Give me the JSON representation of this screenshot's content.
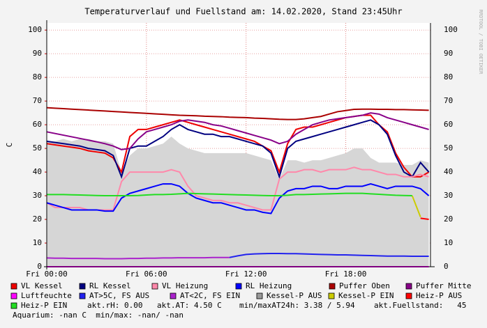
{
  "chart_data": {
    "type": "line",
    "title": "Temperaturverlauf und Fuellstand am: 14.02.2020, Stand 23:45Uhr",
    "y_label": "C",
    "side_text": "RRDTOOL / TOBI OETIKER",
    "x": [
      0,
      0.5,
      1,
      1.5,
      2,
      2.5,
      3,
      3.5,
      4,
      4.5,
      5,
      5.5,
      6,
      6.5,
      7,
      7.5,
      8,
      8.5,
      9,
      9.5,
      10,
      10.5,
      11,
      11.5,
      12,
      12.5,
      13,
      13.5,
      14,
      14.5,
      15,
      15.5,
      16,
      16.5,
      17,
      17.5,
      18,
      18.5,
      19,
      19.5,
      20,
      20.5,
      21,
      21.5,
      22,
      22.5,
      23
    ],
    "xlim": [
      0,
      23.1
    ],
    "xticks": [
      {
        "value": 0,
        "label": "Fri 00:00"
      },
      {
        "value": 6,
        "label": "Fri 06:00"
      },
      {
        "value": 12,
        "label": "Fri 12:00"
      },
      {
        "value": 18,
        "label": "Fri 18:00"
      }
    ],
    "ylim": [
      0,
      103
    ],
    "yticks": [
      0,
      10,
      20,
      30,
      40,
      50,
      60,
      70,
      80,
      90,
      100
    ],
    "grid": true,
    "series": [
      {
        "name": "Kessel-P AUS",
        "color": "#999999",
        "style": "area",
        "values": [
          53,
          53,
          54,
          53,
          54,
          54,
          53,
          53,
          52,
          40,
          47,
          50,
          50,
          51,
          52,
          55,
          52,
          50,
          49,
          48,
          48,
          48,
          48,
          48,
          48,
          47,
          46,
          45,
          37,
          45,
          45,
          44,
          45,
          45,
          46,
          47,
          48,
          50,
          50,
          46,
          44,
          44,
          44,
          43,
          43,
          45,
          44
        ]
      },
      {
        "name": "VL Kessel",
        "color": "#ee0000",
        "values": [
          52,
          51.5,
          51,
          50.5,
          50,
          49,
          48.5,
          48,
          46,
          40,
          55,
          58,
          58,
          59,
          60,
          61,
          62,
          61,
          60,
          59,
          58,
          57,
          56,
          55,
          54,
          53,
          51,
          49,
          40,
          52,
          58,
          59,
          59,
          60,
          61,
          62,
          63,
          63.5,
          64,
          64,
          60,
          57,
          48,
          42,
          38,
          38,
          40
        ]
      },
      {
        "name": "RL Kessel",
        "color": "#000080",
        "values": [
          53,
          52.5,
          52,
          51.5,
          51,
          50,
          49.5,
          49,
          47,
          38,
          50,
          51,
          51,
          53,
          55,
          58,
          60,
          58,
          57,
          56,
          56,
          55,
          55,
          54,
          53,
          52,
          51,
          48,
          38,
          50,
          53,
          54,
          55,
          56,
          57,
          58,
          59,
          60,
          61,
          62,
          60,
          56,
          47,
          40,
          38,
          44,
          40
        ]
      },
      {
        "name": "VL Heizung",
        "color": "#ff88aa",
        "values": [
          27,
          25,
          25,
          25,
          25,
          24,
          24,
          24,
          24,
          36,
          40,
          40,
          40,
          40,
          40,
          41,
          40,
          34,
          30,
          29,
          28,
          28,
          27,
          27,
          26,
          25,
          24,
          24,
          37,
          40,
          40,
          41,
          41,
          40,
          41,
          41,
          41,
          42,
          41,
          41,
          40,
          39,
          39,
          38,
          38,
          39,
          38
        ]
      },
      {
        "name": "RL Heizung",
        "color": "#0000ff",
        "values": [
          27,
          26,
          25,
          24,
          24,
          24,
          24,
          23.5,
          23.5,
          29,
          31,
          32,
          33,
          34,
          35,
          35,
          34,
          31,
          29,
          28,
          27,
          27,
          26,
          25,
          24,
          24,
          23,
          22.5,
          29,
          32,
          33,
          33,
          34,
          34,
          33,
          33,
          34,
          34,
          34,
          35,
          34,
          33,
          34,
          34,
          34,
          33,
          30
        ]
      },
      {
        "name": "Puffer Oben",
        "color": "#aa0000",
        "values": [
          67.2,
          67.0,
          66.8,
          66.6,
          66.4,
          66.2,
          66.0,
          65.8,
          65.6,
          65.4,
          65.2,
          65.0,
          64.8,
          64.6,
          64.4,
          64.2,
          64.0,
          63.9,
          63.8,
          63.6,
          63.5,
          63.4,
          63.2,
          63.1,
          63.0,
          62.8,
          62.7,
          62.5,
          62.3,
          62.2,
          62.2,
          62.5,
          63,
          63.5,
          64.5,
          65.5,
          66,
          66.5,
          66.6,
          66.6,
          66.5,
          66.5,
          66.4,
          66.4,
          66.3,
          66.2,
          66.1
        ]
      },
      {
        "name": "Puffer Mitte",
        "color": "#880088",
        "values": [
          57,
          56.3,
          55.6,
          54.9,
          54.2,
          53.5,
          52.8,
          52,
          51,
          49.5,
          50,
          54,
          57,
          58,
          59,
          60,
          61.5,
          62,
          61.5,
          61,
          60,
          59.5,
          58.5,
          57.5,
          56.5,
          55.5,
          54.5,
          53.5,
          52,
          53,
          56,
          58,
          60,
          61,
          62,
          62.5,
          63,
          63.5,
          64,
          65,
          64.5,
          63,
          62,
          61,
          60,
          59,
          58
        ]
      },
      {
        "name": "Luftfeuchte",
        "color": "#ff00ff",
        "values": [
          0,
          0,
          0,
          0,
          0,
          0,
          0,
          0,
          0,
          0,
          0,
          0,
          0,
          0,
          0,
          0,
          0,
          0,
          0,
          0,
          0,
          0,
          0,
          0,
          0,
          0,
          0,
          0,
          0,
          0,
          0,
          0,
          0,
          0,
          0,
          0,
          0,
          0,
          0,
          0,
          0,
          0,
          0,
          0,
          0,
          0,
          0
        ]
      },
      {
        "name": "AT>5C, FS AUS",
        "color": "#2222ee",
        "values": [
          null,
          null,
          null,
          null,
          null,
          null,
          null,
          null,
          null,
          null,
          null,
          null,
          null,
          null,
          null,
          null,
          null,
          null,
          null,
          null,
          null,
          null,
          3.9,
          4.6,
          5.2,
          5.4,
          5.5,
          5.6,
          5.6,
          5.5,
          5.5,
          5.4,
          5.3,
          5.2,
          5.1,
          5,
          5,
          4.9,
          4.8,
          4.7,
          4.6,
          4.5,
          4.5,
          4.5,
          4.4,
          4.4,
          4.4
        ]
      },
      {
        "name": "AT<2C, FS EIN",
        "color": "#aa22cc",
        "values": [
          3.7,
          3.6,
          3.6,
          3.5,
          3.5,
          3.5,
          3.5,
          3.4,
          3.4,
          3.4,
          3.5,
          3.5,
          3.6,
          3.6,
          3.7,
          3.7,
          3.8,
          3.8,
          3.8,
          3.8,
          3.9,
          3.9,
          3.9,
          null,
          null,
          null,
          null,
          null,
          null,
          null,
          null,
          null,
          null,
          null,
          null,
          null,
          null,
          null,
          null,
          null,
          null,
          null,
          null,
          null,
          null,
          null,
          null
        ]
      },
      {
        "name": "Kessel-P EIN",
        "color": "#cccc00",
        "values": [
          null,
          null,
          null,
          null,
          null,
          null,
          null,
          null,
          null,
          null,
          null,
          null,
          null,
          null,
          null,
          null,
          null,
          null,
          null,
          null,
          null,
          null,
          null,
          null,
          null,
          null,
          null,
          null,
          null,
          null,
          null,
          null,
          null,
          null,
          null,
          null,
          null,
          null,
          null,
          null,
          null,
          null,
          null,
          null,
          30,
          21,
          null
        ]
      },
      {
        "name": "Heiz-P AUS",
        "color": "#ff0000",
        "values": [
          null,
          null,
          null,
          null,
          null,
          null,
          null,
          null,
          null,
          null,
          null,
          null,
          null,
          null,
          null,
          null,
          null,
          null,
          null,
          null,
          null,
          null,
          null,
          null,
          null,
          null,
          null,
          null,
          null,
          null,
          null,
          null,
          null,
          null,
          null,
          null,
          null,
          null,
          null,
          null,
          null,
          null,
          null,
          null,
          null,
          20.5,
          20
        ]
      },
      {
        "name": "Heiz-P EIN",
        "color": "#22dd22",
        "values": [
          30.5,
          30.5,
          30.5,
          30.4,
          30.3,
          30.2,
          30.1,
          30,
          30,
          30,
          30,
          30.1,
          30.3,
          30.5,
          30.5,
          30.6,
          30.8,
          31,
          30.9,
          30.8,
          30.7,
          30.6,
          30.5,
          30.4,
          30.3,
          30.2,
          30.1,
          30,
          30,
          30.2,
          30.5,
          30.5,
          30.6,
          30.7,
          30.8,
          30.9,
          31,
          31,
          31,
          30.8,
          30.6,
          30.4,
          30.2,
          30.1,
          30,
          null,
          null
        ]
      }
    ],
    "legend_notes": [
      "akt.rH: 0.00",
      "akt.AT: 4.50 C",
      "min/maxAT24h: 3.38 / 5.94",
      "akt.Fuellstand:   45",
      "Aquarium: -nan C  min/max: -nan/ -nan"
    ]
  }
}
